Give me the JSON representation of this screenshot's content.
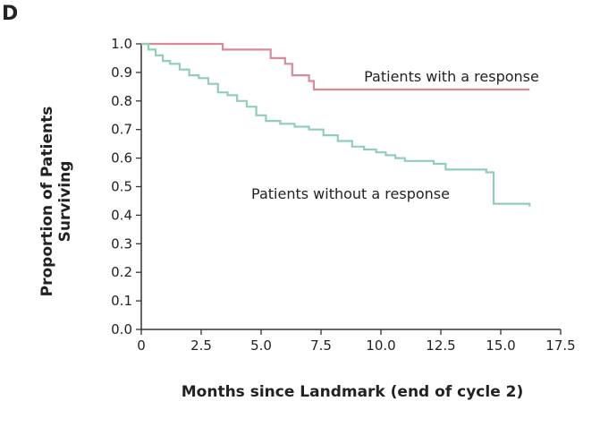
{
  "chart_data": {
    "type": "line",
    "panel_label": "D",
    "title": "",
    "xlabel": "Months since Landmark (end of cycle 2)",
    "ylabel_lines": [
      "Proportion of Patients",
      "Surviving"
    ],
    "xlim": [
      0,
      17.5
    ],
    "ylim": [
      0,
      1.0
    ],
    "x_ticks": [
      "0",
      "2.5",
      "5.0",
      "7.5",
      "10.0",
      "12.5",
      "15.0",
      "17.5"
    ],
    "y_ticks": [
      "0.0",
      "0.1",
      "0.2",
      "0.3",
      "0.4",
      "0.5",
      "0.6",
      "0.7",
      "0.8",
      "0.9",
      "1.0"
    ],
    "grid": false,
    "series": [
      {
        "name": "Patients with a response",
        "color": "#d98a9a",
        "x": [
          0,
          3.0,
          3.4,
          4.8,
          5.4,
          6.0,
          6.3,
          7.0,
          7.2,
          16.2
        ],
        "y": [
          1.0,
          1.0,
          0.98,
          0.98,
          0.95,
          0.93,
          0.89,
          0.87,
          0.84,
          0.84
        ]
      },
      {
        "name": "Patients without a response",
        "color": "#8fcfb4",
        "x": [
          0,
          0.3,
          0.6,
          0.9,
          1.2,
          1.6,
          2.0,
          2.4,
          2.8,
          3.2,
          3.6,
          4.0,
          4.4,
          4.8,
          5.2,
          5.8,
          6.4,
          7.0,
          7.6,
          8.2,
          8.8,
          9.3,
          9.8,
          10.2,
          10.6,
          11.0,
          11.6,
          12.2,
          12.7,
          13.3,
          13.9,
          14.4,
          14.7,
          16.2
        ],
        "y": [
          1.0,
          0.98,
          0.96,
          0.94,
          0.93,
          0.91,
          0.89,
          0.88,
          0.86,
          0.83,
          0.82,
          0.8,
          0.78,
          0.75,
          0.73,
          0.72,
          0.71,
          0.7,
          0.68,
          0.66,
          0.64,
          0.63,
          0.62,
          0.61,
          0.6,
          0.59,
          0.59,
          0.58,
          0.56,
          0.56,
          0.56,
          0.55,
          0.44,
          0.43
        ]
      }
    ]
  }
}
